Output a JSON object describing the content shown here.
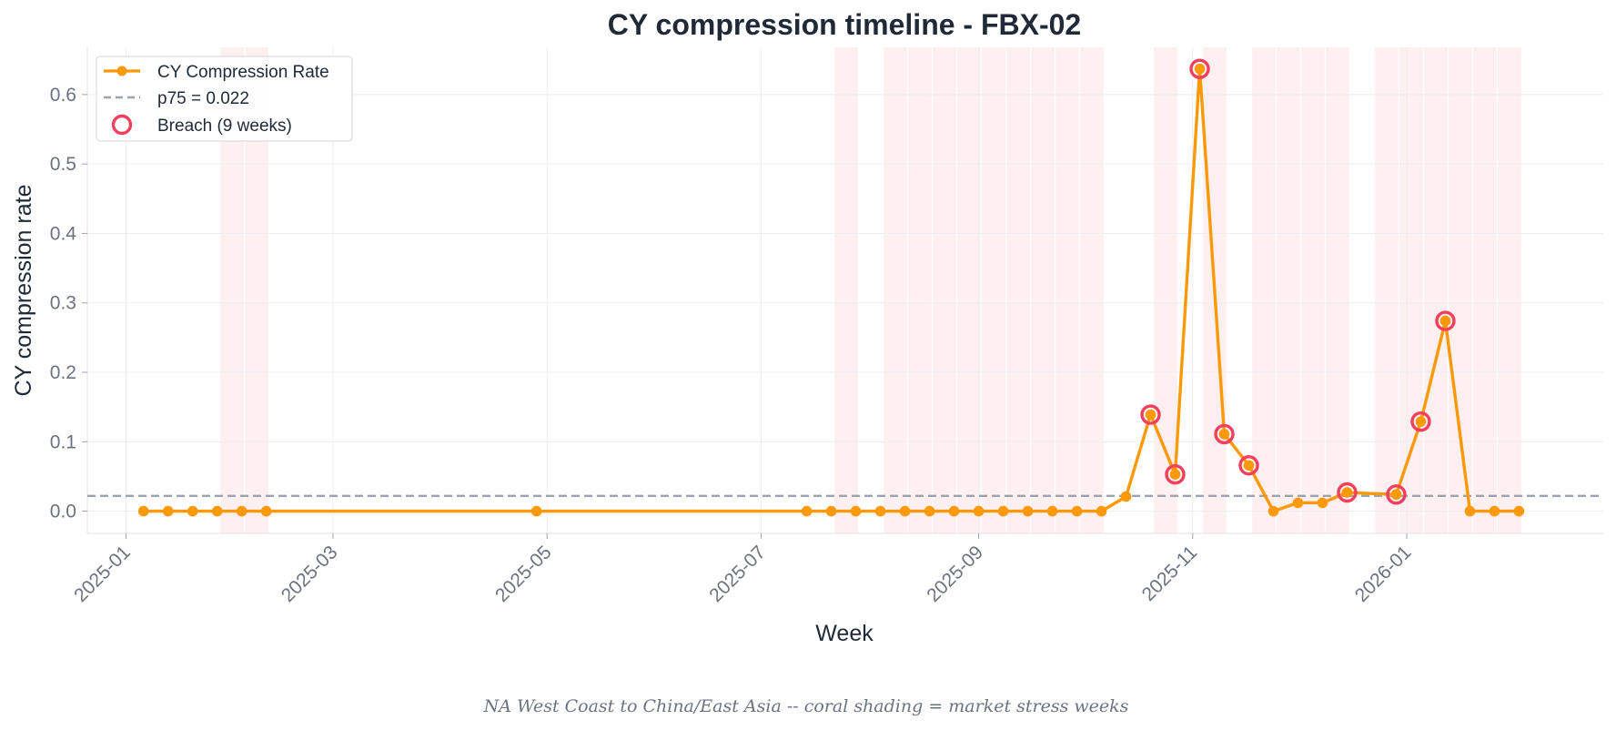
{
  "chart_data": {
    "type": "line",
    "title": "CY compression timeline - FBX-02",
    "xlabel": "Week",
    "ylabel": "CY compression rate",
    "footnote": "NA West Coast to China/East Asia  --  coral shading = market stress weeks",
    "x_ticks": [
      "2025-01",
      "2025-03",
      "2025-05",
      "2025-07",
      "2025-09",
      "2025-11",
      "2026-01"
    ],
    "y_ticks": [
      "0.0",
      "0.1",
      "0.2",
      "0.3",
      "0.4",
      "0.5",
      "0.6"
    ],
    "ylim": [
      -0.032,
      0.668
    ],
    "xlim": [
      "2024-12-21",
      "2026-02-26"
    ],
    "grid": true,
    "legend_position": "top-left",
    "legend": {
      "series_label": "CY Compression Rate",
      "threshold_label": "p75 = 0.022",
      "breach_label": "Breach (9 weeks)"
    },
    "threshold": {
      "value": 0.022,
      "color": "#9ca3af"
    },
    "colors": {
      "line": "#ff9908",
      "breach": "#f43f5e",
      "stress": "#fee2e6"
    },
    "series": [
      {
        "name": "CY Compression Rate",
        "points": [
          {
            "x": "2025-01-06",
            "y": 0.0
          },
          {
            "x": "2025-01-13",
            "y": 0.0
          },
          {
            "x": "2025-01-20",
            "y": 0.0
          },
          {
            "x": "2025-01-27",
            "y": 0.0
          },
          {
            "x": "2025-02-03",
            "y": 0.0
          },
          {
            "x": "2025-02-10",
            "y": 0.0
          },
          {
            "x": "2025-04-28",
            "y": 0.0
          },
          {
            "x": "2025-07-14",
            "y": 0.0
          },
          {
            "x": "2025-07-21",
            "y": 0.0
          },
          {
            "x": "2025-07-28",
            "y": 0.0
          },
          {
            "x": "2025-08-04",
            "y": 0.0
          },
          {
            "x": "2025-08-11",
            "y": 0.0
          },
          {
            "x": "2025-08-18",
            "y": 0.0
          },
          {
            "x": "2025-08-25",
            "y": 0.0
          },
          {
            "x": "2025-09-01",
            "y": 0.0
          },
          {
            "x": "2025-09-08",
            "y": 0.0
          },
          {
            "x": "2025-09-15",
            "y": 0.0
          },
          {
            "x": "2025-09-22",
            "y": 0.0
          },
          {
            "x": "2025-09-29",
            "y": 0.0
          },
          {
            "x": "2025-10-06",
            "y": 0.0
          },
          {
            "x": "2025-10-13",
            "y": 0.021
          },
          {
            "x": "2025-10-20",
            "y": 0.139
          },
          {
            "x": "2025-10-27",
            "y": 0.053
          },
          {
            "x": "2025-11-03",
            "y": 0.637
          },
          {
            "x": "2025-11-10",
            "y": 0.111
          },
          {
            "x": "2025-11-17",
            "y": 0.066
          },
          {
            "x": "2025-11-24",
            "y": 0.0
          },
          {
            "x": "2025-12-01",
            "y": 0.012
          },
          {
            "x": "2025-12-08",
            "y": 0.012
          },
          {
            "x": "2025-12-15",
            "y": 0.027
          },
          {
            "x": "2025-12-29",
            "y": 0.024
          },
          {
            "x": "2026-01-05",
            "y": 0.129
          },
          {
            "x": "2026-01-12",
            "y": 0.274
          },
          {
            "x": "2026-01-19",
            "y": 0.0
          },
          {
            "x": "2026-01-26",
            "y": 0.0
          },
          {
            "x": "2026-02-02",
            "y": 0.0
          }
        ]
      }
    ],
    "breaches": [
      {
        "x": "2025-10-20",
        "y": 0.139
      },
      {
        "x": "2025-10-27",
        "y": 0.053
      },
      {
        "x": "2025-11-03",
        "y": 0.637
      },
      {
        "x": "2025-11-10",
        "y": 0.111
      },
      {
        "x": "2025-11-17",
        "y": 0.066
      },
      {
        "x": "2025-12-15",
        "y": 0.027
      },
      {
        "x": "2025-12-29",
        "y": 0.024
      },
      {
        "x": "2026-01-05",
        "y": 0.129
      },
      {
        "x": "2026-01-12",
        "y": 0.274
      }
    ],
    "stress_weeks": [
      "2025-02-03",
      "2025-02-10",
      "2025-07-28",
      "2025-08-11",
      "2025-08-18",
      "2025-08-25",
      "2025-09-01",
      "2025-09-08",
      "2025-09-15",
      "2025-09-22",
      "2025-09-29",
      "2025-10-06",
      "2025-10-27",
      "2025-11-10",
      "2025-11-24",
      "2025-12-01",
      "2025-12-08",
      "2025-12-15",
      "2025-12-29",
      "2026-01-05",
      "2026-01-12",
      "2026-01-19",
      "2026-01-26",
      "2026-02-02"
    ]
  }
}
